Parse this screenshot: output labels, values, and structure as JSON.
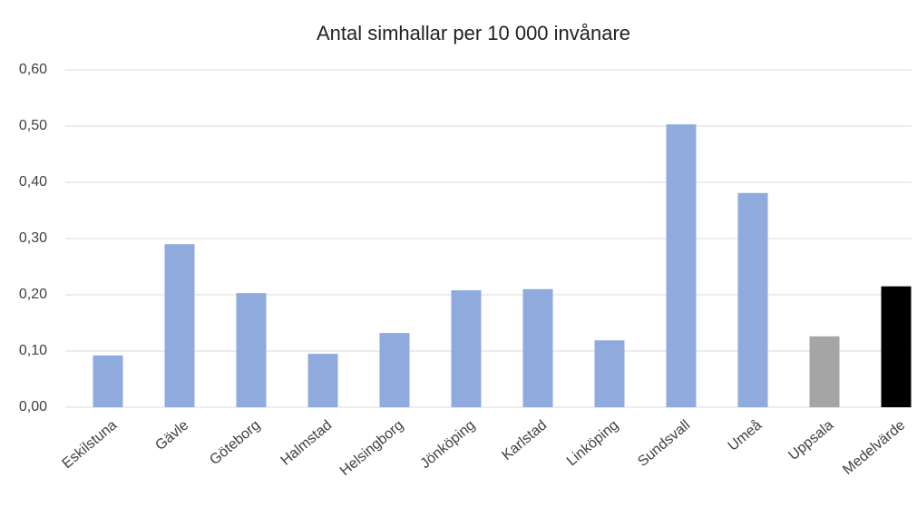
{
  "chart_data": {
    "type": "bar",
    "title": "Antal simhallar per 10 000 invånare",
    "categories": [
      "Eskilstuna",
      "Gävle",
      "Göteborg",
      "Halmstad",
      "Helsingborg",
      "Jönköping",
      "Karlstad",
      "Linköping",
      "Sundsvall",
      "Umeå",
      "Uppsala",
      "Medelvärde"
    ],
    "values": [
      0.092,
      0.29,
      0.203,
      0.095,
      0.132,
      0.208,
      0.21,
      0.119,
      0.503,
      0.381,
      0.126,
      0.215
    ],
    "colors": [
      "#8faadc",
      "#8faadc",
      "#8faadc",
      "#8faadc",
      "#8faadc",
      "#8faadc",
      "#8faadc",
      "#8faadc",
      "#8faadc",
      "#8faadc",
      "#a5a5a5",
      "#000000"
    ],
    "ylim": [
      0,
      0.6
    ],
    "yticks": [
      {
        "value": 0,
        "label": "0,00"
      },
      {
        "value": 0.1,
        "label": "0,10"
      },
      {
        "value": 0.2,
        "label": "0,20"
      },
      {
        "value": 0.3,
        "label": "0,30"
      },
      {
        "value": 0.4,
        "label": "0,40"
      },
      {
        "value": 0.5,
        "label": "0,50"
      },
      {
        "value": 0.6,
        "label": "0,60"
      }
    ],
    "grid": true
  }
}
